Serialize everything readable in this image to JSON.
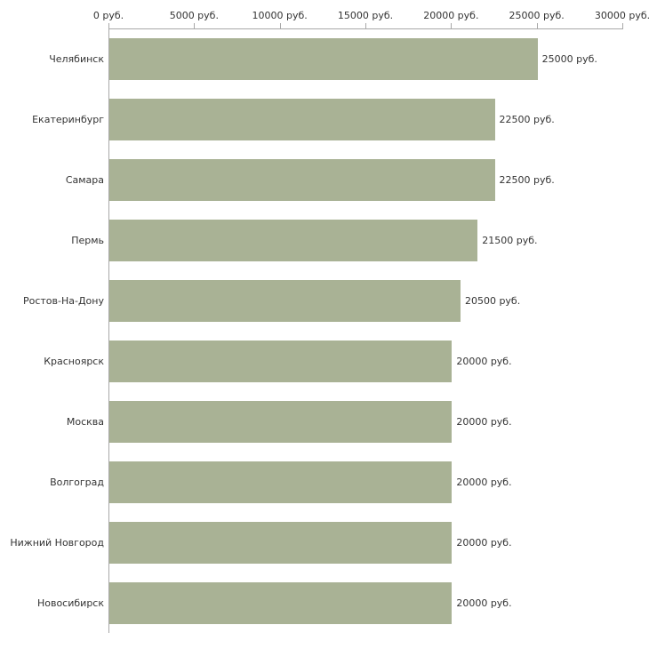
{
  "chart_data": {
    "type": "bar",
    "orientation": "horizontal",
    "title": "",
    "xlabel": "",
    "ylabel": "",
    "categories": [
      "Челябинск",
      "Екатеринбург",
      "Самара",
      "Пермь",
      "Ростов-На-Дону",
      "Красноярск",
      "Москва",
      "Волгоград",
      "Нижний Новгород",
      "Новосибирск"
    ],
    "values": [
      25000,
      22500,
      22500,
      21500,
      20500,
      20000,
      20000,
      20000,
      20000,
      20000
    ],
    "value_labels": [
      "25000 руб.",
      "22500 руб.",
      "22500 руб.",
      "21500 руб.",
      "20500 руб.",
      "20000 руб.",
      "20000 руб.",
      "20000 руб.",
      "20000 руб.",
      "20000 руб."
    ],
    "xlim": [
      0,
      30000
    ],
    "x_ticks": [
      0,
      5000,
      10000,
      15000,
      20000,
      25000,
      30000
    ],
    "x_tick_labels": [
      "0 руб.",
      "5000 руб.",
      "10000 руб.",
      "15000 руб.",
      "20000 руб.",
      "25000 руб.",
      "30000 руб."
    ],
    "bar_color": "#a9b295",
    "axis_color": "#a8a8a8",
    "grid": false,
    "legend_position": "none"
  }
}
